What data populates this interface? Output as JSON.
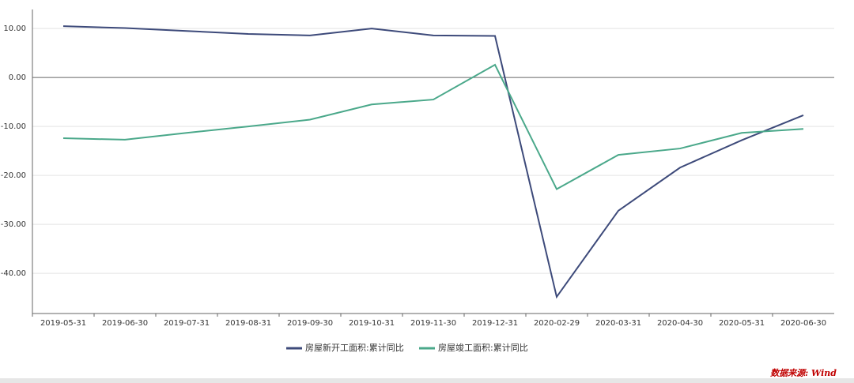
{
  "chart_data": {
    "type": "line",
    "categories": [
      "2019-05-31",
      "2019-06-30",
      "2019-07-31",
      "2019-08-31",
      "2019-09-30",
      "2019-10-31",
      "2019-11-30",
      "2019-12-31",
      "2020-02-29",
      "2020-03-31",
      "2020-04-30",
      "2020-05-31",
      "2020-06-30"
    ],
    "series": [
      {
        "name": "房屋新开工面积:累计同比",
        "color": "#3d4a7a",
        "values": [
          10.5,
          10.1,
          9.5,
          8.9,
          8.6,
          10.0,
          8.6,
          8.5,
          -44.8,
          -27.2,
          -18.4,
          -12.8,
          -7.7
        ]
      },
      {
        "name": "房屋竣工面积:累计同比",
        "color": "#4aa88a",
        "values": [
          -12.4,
          -12.7,
          -11.3,
          -10.0,
          -8.6,
          -5.5,
          -4.5,
          2.6,
          -22.8,
          -15.8,
          -14.5,
          -11.3,
          -10.5
        ]
      }
    ],
    "ylim": [
      -48.2,
      13.9
    ],
    "yticks": [
      {
        "value": 10,
        "label": "10.00"
      },
      {
        "value": 0,
        "label": "0.00"
      },
      {
        "value": -10,
        "label": "-10.00"
      },
      {
        "value": -20,
        "label": "-20.00"
      },
      {
        "value": -30,
        "label": "-30.00"
      },
      {
        "value": -40,
        "label": "-40.00"
      }
    ],
    "grid": true,
    "legend": "bottom",
    "source": "数据来源: Wind"
  }
}
